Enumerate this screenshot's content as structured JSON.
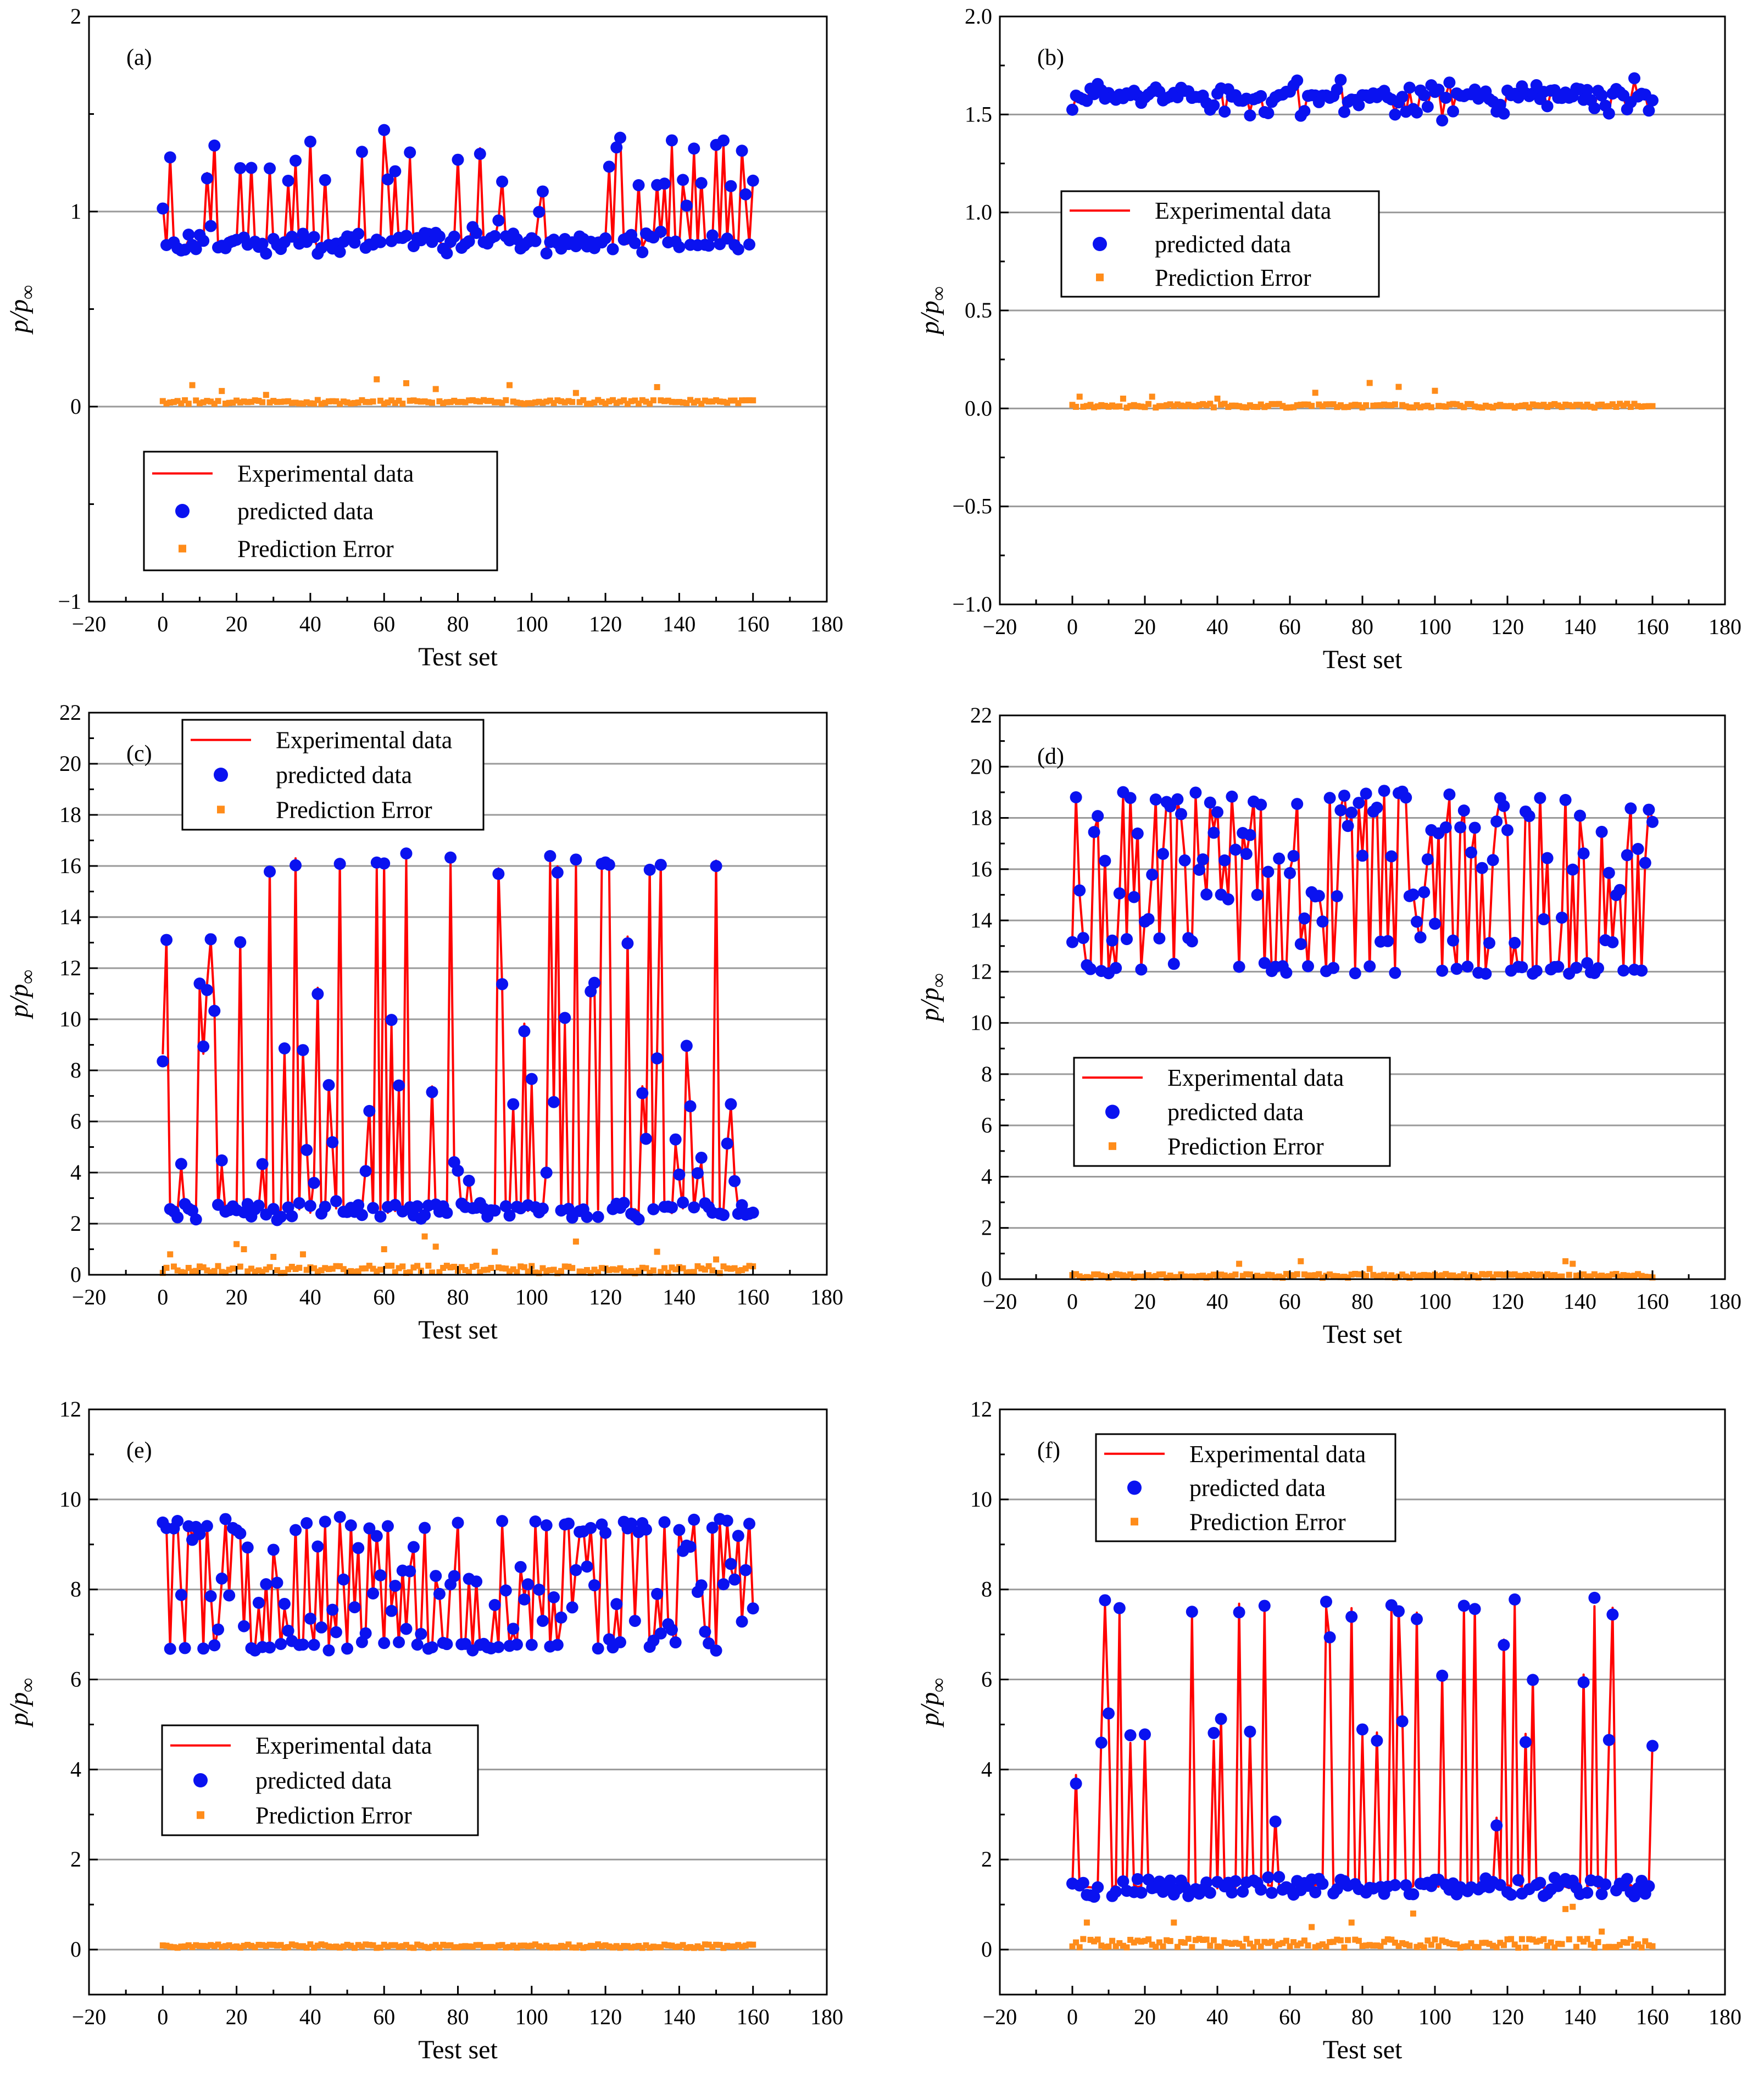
{
  "figure": {
    "title": "Experimental vs predicted pressure ratio on test set (6 panels)",
    "colors": {
      "experimental": "#ff0000",
      "predicted": "#0a12f0",
      "error": "#ff8c1a",
      "grid": "#9a9a9a",
      "axis": "#000000"
    }
  },
  "chart_data": [
    {
      "panel_label": "(a)",
      "type": "line",
      "xlabel": "Test set",
      "ylabel_main": "p/p",
      "ylabel_sub": "∞",
      "xlim": [
        -20,
        180
      ],
      "ylim": [
        -1,
        2
      ],
      "xticks": [
        -20,
        0,
        20,
        40,
        60,
        80,
        100,
        120,
        140,
        160,
        180
      ],
      "xtick_labels": [
        "−20",
        "0",
        "20",
        "40",
        "60",
        "80",
        "100",
        "120",
        "140",
        "160",
        "180"
      ],
      "yticks": [
        -1,
        0,
        1,
        2
      ],
      "ytick_labels": [
        "−1",
        "0",
        "1",
        "2"
      ],
      "gridlines_y": [
        0,
        1
      ],
      "series_names": {
        "experimental": "Experimental data",
        "predicted": "predicted data",
        "error": "Prediction Error"
      },
      "legend_position": "bottom-left",
      "n_points": 161,
      "low_value": 0.84,
      "high_values": [
        0.92,
        0.95,
        1.0,
        1.05,
        1.12,
        1.15,
        1.2,
        1.25,
        1.3,
        1.35,
        1.38
      ],
      "high_probability": 0.3,
      "noise": 0.03,
      "error_base": 0.02,
      "error_spread": 0.02,
      "error_spikes": [
        [
          8,
          0.11
        ],
        [
          16,
          0.08
        ],
        [
          28,
          0.06
        ],
        [
          58,
          0.14
        ],
        [
          66,
          0.12
        ],
        [
          74,
          0.09
        ],
        [
          94,
          0.11
        ],
        [
          112,
          0.07
        ],
        [
          134,
          0.1
        ]
      ],
      "seed": 11
    },
    {
      "panel_label": "(b)",
      "type": "line",
      "xlabel": "Test set",
      "ylabel_main": "p/p",
      "ylabel_sub": "∞",
      "xlim": [
        -20,
        180
      ],
      "ylim": [
        -1.0,
        2.0
      ],
      "xticks": [
        -20,
        0,
        20,
        40,
        60,
        80,
        100,
        120,
        140,
        160,
        180
      ],
      "xtick_labels": [
        "−20",
        "0",
        "20",
        "40",
        "60",
        "80",
        "100",
        "120",
        "140",
        "160",
        "180"
      ],
      "yticks": [
        -1.0,
        -0.5,
        0.0,
        0.5,
        1.0,
        1.5,
        2.0
      ],
      "ytick_labels": [
        "−1.0",
        "−0.5",
        "0.0",
        "0.5",
        "1.0",
        "1.5",
        "2.0"
      ],
      "gridlines_y": [
        -0.5,
        0.0,
        0.5,
        1.0,
        1.5
      ],
      "series_names": {
        "experimental": "Experimental data",
        "predicted": "predicted data",
        "error": "Prediction Error"
      },
      "legend_position": "middle-left",
      "n_points": 161,
      "low_value": 1.6,
      "high_values": [
        1.5,
        1.52,
        1.55,
        1.62,
        1.65
      ],
      "high_probability": 0.35,
      "noise": 0.025,
      "error_base": 0.01,
      "error_spread": 0.02,
      "error_spikes": [
        [
          2,
          0.06
        ],
        [
          14,
          0.05
        ],
        [
          22,
          0.06
        ],
        [
          40,
          0.05
        ],
        [
          67,
          0.08
        ],
        [
          82,
          0.13
        ],
        [
          90,
          0.11
        ],
        [
          100,
          0.09
        ]
      ],
      "seed": 23
    },
    {
      "panel_label": "(c)",
      "type": "line",
      "xlabel": "Test set",
      "ylabel_main": "p/p",
      "ylabel_sub": "∞",
      "xlim": [
        -20,
        180
      ],
      "ylim": [
        0,
        22
      ],
      "xticks": [
        -20,
        0,
        20,
        40,
        60,
        80,
        100,
        120,
        140,
        160,
        180
      ],
      "xtick_labels": [
        "−20",
        "0",
        "20",
        "40",
        "60",
        "80",
        "100",
        "120",
        "140",
        "160",
        "180"
      ],
      "yticks": [
        0,
        2,
        4,
        6,
        8,
        10,
        12,
        14,
        16,
        18,
        20,
        22
      ],
      "ytick_labels": [
        "0",
        "2",
        "4",
        "6",
        "8",
        "10",
        "12",
        "14",
        "16",
        "18",
        "20",
        "22"
      ],
      "gridlines_y": [
        2,
        4,
        6,
        8,
        10,
        12,
        14,
        16,
        18,
        20
      ],
      "series_names": {
        "experimental": "Experimental data",
        "predicted": "predicted data",
        "error": "Prediction Error"
      },
      "legend_position": "top-center",
      "n_points": 161,
      "low_value": 2.5,
      "high_values": [
        16.1,
        16.0,
        15.9,
        16.2,
        13.2,
        11.3,
        10.5,
        9.8,
        8.7,
        7.4,
        6.6,
        5.1,
        4.3,
        3.8
      ],
      "high_probability": 0.42,
      "noise": 0.1,
      "error_base": 0.15,
      "error_spread": 0.3,
      "error_spikes": [
        [
          2,
          0.8
        ],
        [
          20,
          1.2
        ],
        [
          22,
          1.0
        ],
        [
          30,
          0.7
        ],
        [
          38,
          0.8
        ],
        [
          60,
          1.0
        ],
        [
          71,
          1.5
        ],
        [
          74,
          1.1
        ],
        [
          90,
          0.9
        ],
        [
          112,
          1.3
        ],
        [
          134,
          0.9
        ],
        [
          150,
          0.6
        ]
      ],
      "seed": 37
    },
    {
      "panel_label": "(d)",
      "type": "line",
      "xlabel": "Test set",
      "ylabel_main": "p/p",
      "ylabel_sub": "∞",
      "xlim": [
        -20,
        180
      ],
      "ylim": [
        0,
        22
      ],
      "xticks": [
        -20,
        0,
        20,
        40,
        60,
        80,
        100,
        120,
        140,
        160,
        180
      ],
      "xtick_labels": [
        "−20",
        "0",
        "20",
        "40",
        "60",
        "80",
        "100",
        "120",
        "140",
        "160",
        "180"
      ],
      "yticks": [
        0,
        2,
        4,
        6,
        8,
        10,
        12,
        14,
        16,
        18,
        20,
        22
      ],
      "ytick_labels": [
        "0",
        "2",
        "4",
        "6",
        "8",
        "10",
        "12",
        "14",
        "16",
        "18",
        "20",
        "22"
      ],
      "gridlines_y": [
        2,
        4,
        6,
        8,
        10,
        12,
        14,
        16,
        18,
        20
      ],
      "series_names": {
        "experimental": "Experimental data",
        "predicted": "predicted data",
        "error": "Prediction Error"
      },
      "legend_position": "middle-left",
      "n_points": 161,
      "low_value": 12.1,
      "high_values": [
        18.9,
        18.7,
        18.4,
        18.0,
        17.5,
        16.6,
        16.4,
        16.0,
        15.0,
        14.0,
        13.2
      ],
      "high_probability": 0.72,
      "noise": 0.08,
      "error_base": 0.1,
      "error_spread": 0.15,
      "error_spikes": [
        [
          46,
          0.6
        ],
        [
          63,
          0.7
        ],
        [
          82,
          0.4
        ],
        [
          136,
          0.7
        ],
        [
          138,
          0.6
        ]
      ],
      "seed": 41
    },
    {
      "panel_label": "(e)",
      "type": "line",
      "xlabel": "Test set",
      "ylabel_main": "p/p",
      "ylabel_sub": "∞",
      "xlim": [
        -20,
        180
      ],
      "ylim": [
        -1,
        12
      ],
      "xticks": [
        -20,
        0,
        20,
        40,
        60,
        80,
        100,
        120,
        140,
        160,
        180
      ],
      "xtick_labels": [
        "−20",
        "0",
        "20",
        "40",
        "60",
        "80",
        "100",
        "120",
        "140",
        "160",
        "180"
      ],
      "yticks": [
        0,
        2,
        4,
        6,
        8,
        10,
        12
      ],
      "ytick_labels": [
        "0",
        "2",
        "4",
        "6",
        "8",
        "10",
        "12"
      ],
      "gridlines_y": [
        0,
        2,
        4,
        6,
        8,
        10
      ],
      "series_names": {
        "experimental": "Experimental data",
        "predicted": "predicted data",
        "error": "Prediction Error"
      },
      "legend_position": "middle-left",
      "n_points": 161,
      "low_value": 6.75,
      "high_values": [
        9.5,
        9.45,
        9.4,
        9.2,
        8.9,
        8.5,
        8.2,
        7.9,
        7.6,
        7.3,
        7.1
      ],
      "high_probability": 0.72,
      "noise": 0.05,
      "error_base": 0.06,
      "error_spread": 0.08,
      "error_spikes": [],
      "seed": 53
    },
    {
      "panel_label": "(f)",
      "type": "line",
      "xlabel": "Test set",
      "ylabel_main": "p/p",
      "ylabel_sub": "∞",
      "xlim": [
        -20,
        180
      ],
      "ylim": [
        -1,
        12
      ],
      "xticks": [
        -20,
        0,
        20,
        40,
        60,
        80,
        100,
        120,
        140,
        160,
        180
      ],
      "xtick_labels": [
        "−20",
        "0",
        "20",
        "40",
        "60",
        "80",
        "100",
        "120",
        "140",
        "160",
        "180"
      ],
      "yticks": [
        0,
        2,
        4,
        6,
        8,
        10,
        12
      ],
      "ytick_labels": [
        "0",
        "2",
        "4",
        "6",
        "8",
        "10",
        "12"
      ],
      "gridlines_y": [
        0,
        2,
        4,
        6,
        8,
        10
      ],
      "series_names": {
        "experimental": "Experimental data",
        "predicted": "predicted data",
        "error": "Prediction Error"
      },
      "legend_position": "top-left",
      "n_points": 161,
      "low_value": 1.4,
      "high_values": [
        7.6,
        7.65,
        7.55,
        7.5,
        7.7,
        6.9,
        5.2,
        4.8,
        3.9,
        2.9,
        6.1,
        4.6
      ],
      "high_probability": 0.22,
      "noise": 0.04,
      "error_base": 0.1,
      "error_spread": 0.2,
      "error_spikes": [
        [
          4,
          0.6
        ],
        [
          28,
          0.6
        ],
        [
          66,
          0.5
        ],
        [
          77,
          0.6
        ],
        [
          94,
          0.8
        ],
        [
          136,
          0.9
        ],
        [
          138,
          0.95
        ],
        [
          146,
          0.4
        ]
      ],
      "seed": 67
    }
  ]
}
